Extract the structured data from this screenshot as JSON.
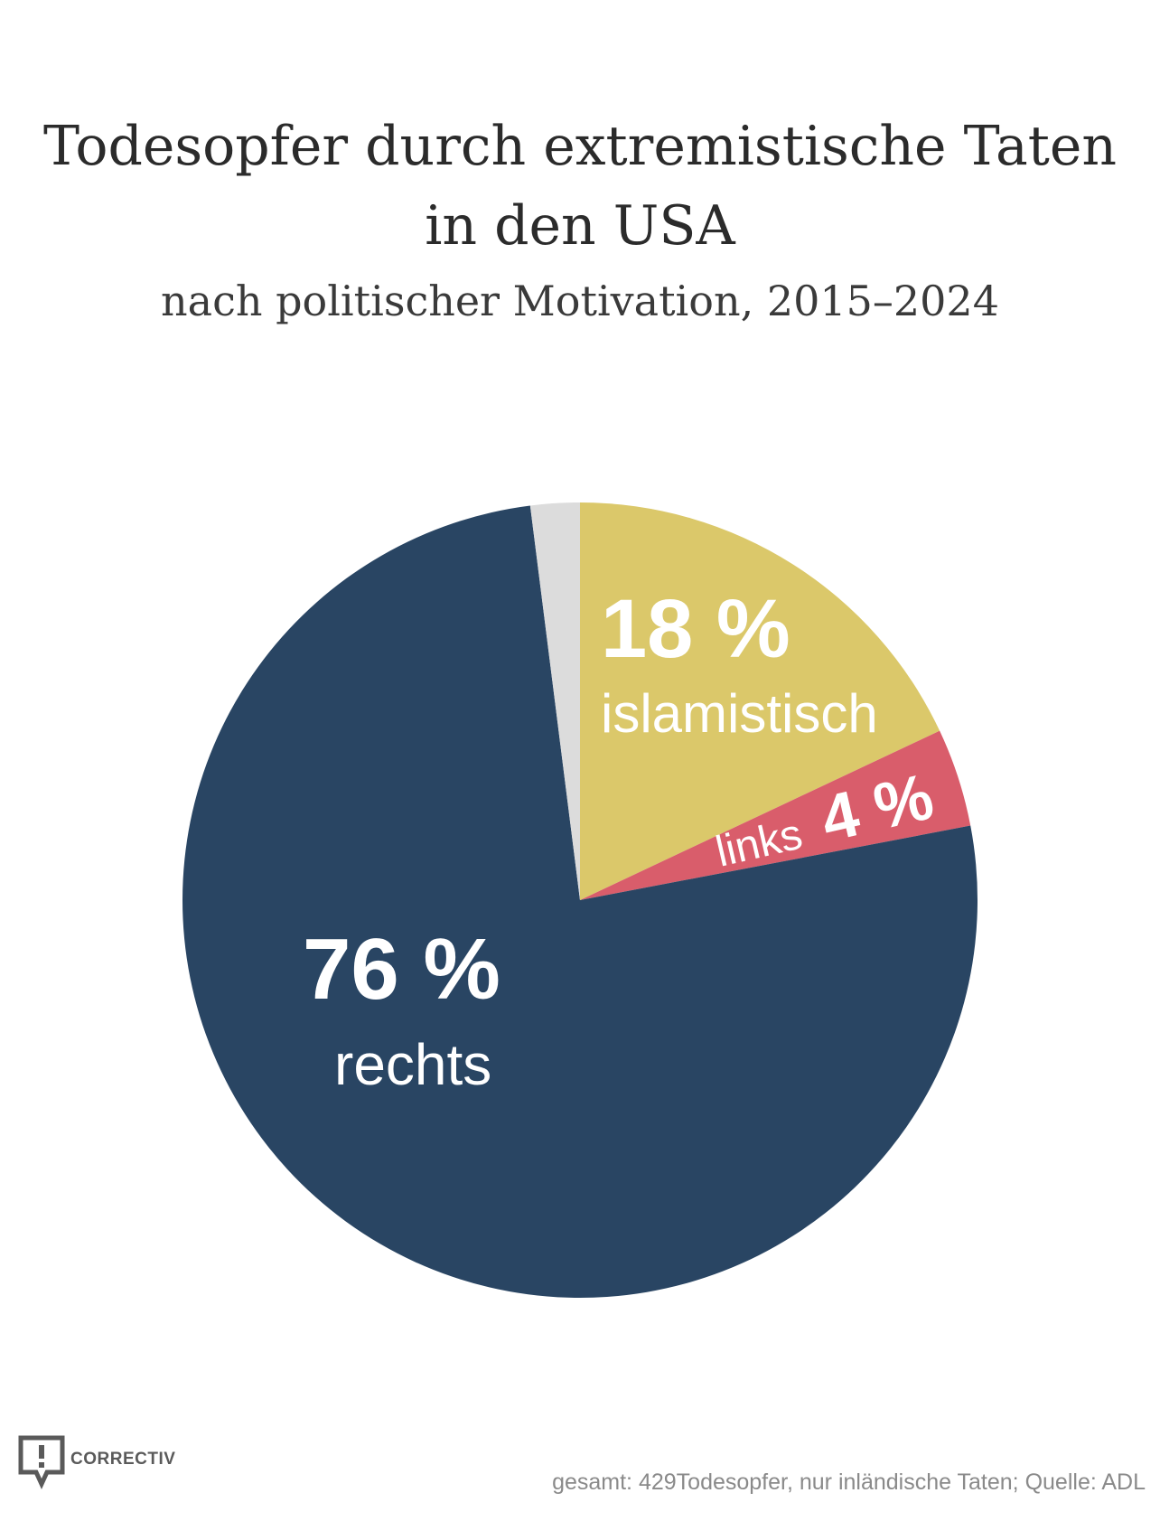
{
  "chart_data": {
    "type": "pie",
    "title": "Todesopfer durch extremistische Taten in den USA",
    "title_lines": [
      "Todesopfer durch extremistische Taten",
      "in den USA"
    ],
    "subtitle": "nach politischer Motivation, 2015–2024",
    "slices": [
      {
        "name": "islamistisch",
        "value": 18,
        "label": "18 %",
        "color": "#dbc86a"
      },
      {
        "name": "links",
        "value": 4,
        "label": "4 %",
        "color": "#d95d6b"
      },
      {
        "name": "rechts",
        "value": 76,
        "label": "76 %",
        "color": "#294563"
      },
      {
        "name": "",
        "value": 2,
        "label": "",
        "color": "#dcdcdc"
      }
    ]
  },
  "footer": {
    "note": "gesamt: 429Todesopfer, nur inländische Taten; Quelle: ADL"
  },
  "brand": {
    "logo_text": "CORRECTIV",
    "logo_icon": "speech-bubble-exclamation-icon"
  }
}
